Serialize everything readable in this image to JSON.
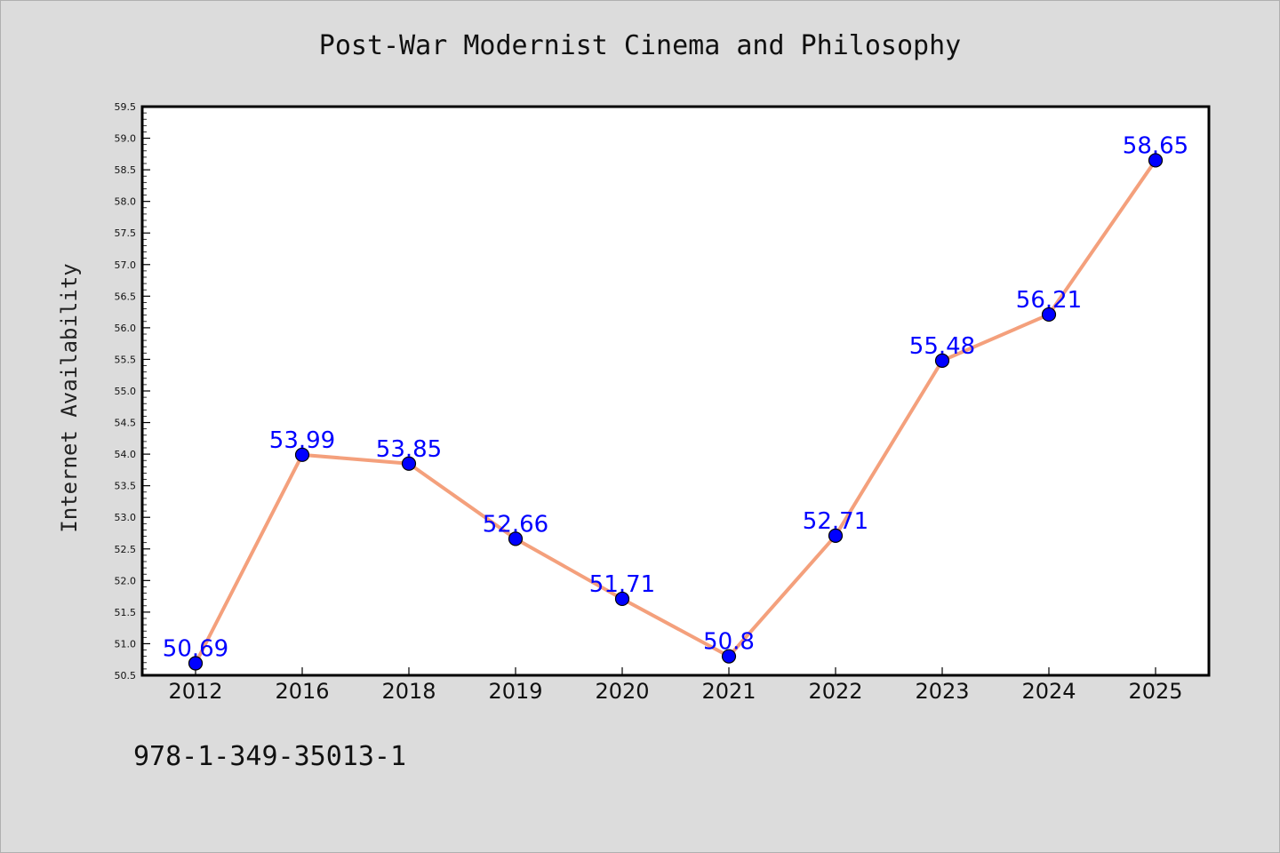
{
  "chart_data": {
    "type": "line",
    "title": "Post-War Modernist Cinema and Philosophy",
    "xlabel": "",
    "ylabel": "Internet Availability",
    "categories": [
      "2012",
      "2016",
      "2018",
      "2019",
      "2020",
      "2021",
      "2022",
      "2023",
      "2024",
      "2025"
    ],
    "series": [
      {
        "values": [
          50.69,
          53.99,
          53.85,
          52.66,
          51.71,
          50.8,
          52.71,
          55.48,
          56.21,
          58.65
        ],
        "labels": [
          "50.69",
          "53.99",
          "53.85",
          "52.66",
          "51.71",
          "50.8",
          "52.71",
          "55.48",
          "56.21",
          "58.65"
        ]
      }
    ],
    "ylim": [
      50.5,
      59.5
    ],
    "yticks": [
      "50.5",
      "51.0",
      "51.5",
      "52.0",
      "52.5",
      "53.0",
      "53.5",
      "54.0",
      "54.5",
      "55.0",
      "55.5",
      "56.0",
      "56.5",
      "57.0",
      "57.5",
      "58.0",
      "58.5",
      "59.0",
      "59.5"
    ],
    "grid": false,
    "colors": {
      "line": "#f4a07c",
      "marker": "#0000ff",
      "label": "#0000ff",
      "background": "#dcdcdc",
      "plot_background": "#ffffff"
    }
  },
  "footer": {
    "isbn": "978-1-349-35013-1"
  }
}
